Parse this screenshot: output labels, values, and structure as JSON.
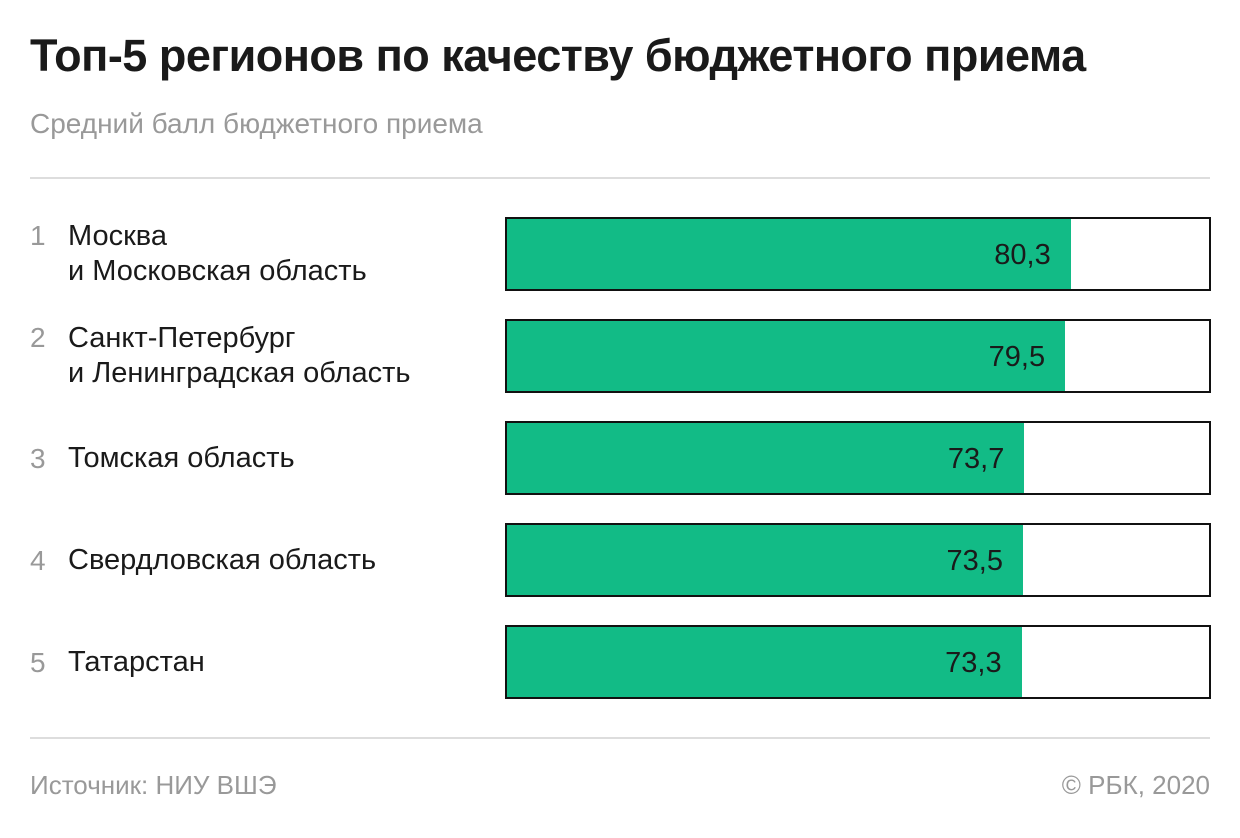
{
  "header": {
    "title": "Топ-5 регионов по качеству бюджетного приема",
    "subtitle": "Средний балл бюджетного приема"
  },
  "footer": {
    "source": "Источник: НИУ ВШЭ",
    "copyright": "© РБК, 2020"
  },
  "colors": {
    "bar": "#12bb86",
    "bar_border": "#111111",
    "muted_text": "#999999"
  },
  "chart_data": {
    "type": "bar",
    "orientation": "horizontal",
    "title": "Топ-5 регионов по качеству бюджетного приема",
    "subtitle": "Средний балл бюджетного приема",
    "xlim": [
      0,
      100
    ],
    "ranks": [
      "1",
      "2",
      "3",
      "4",
      "5"
    ],
    "categories": [
      [
        "Москва",
        "и Московская область"
      ],
      [
        "Санкт-Петербург",
        "и Ленинградская область"
      ],
      [
        "Томская область"
      ],
      [
        "Свердловская область"
      ],
      [
        "Татарстан"
      ]
    ],
    "values": [
      80.3,
      79.5,
      73.7,
      73.5,
      73.3
    ],
    "value_labels": [
      "80,3",
      "79,5",
      "73,7",
      "73,5",
      "73,3"
    ]
  }
}
